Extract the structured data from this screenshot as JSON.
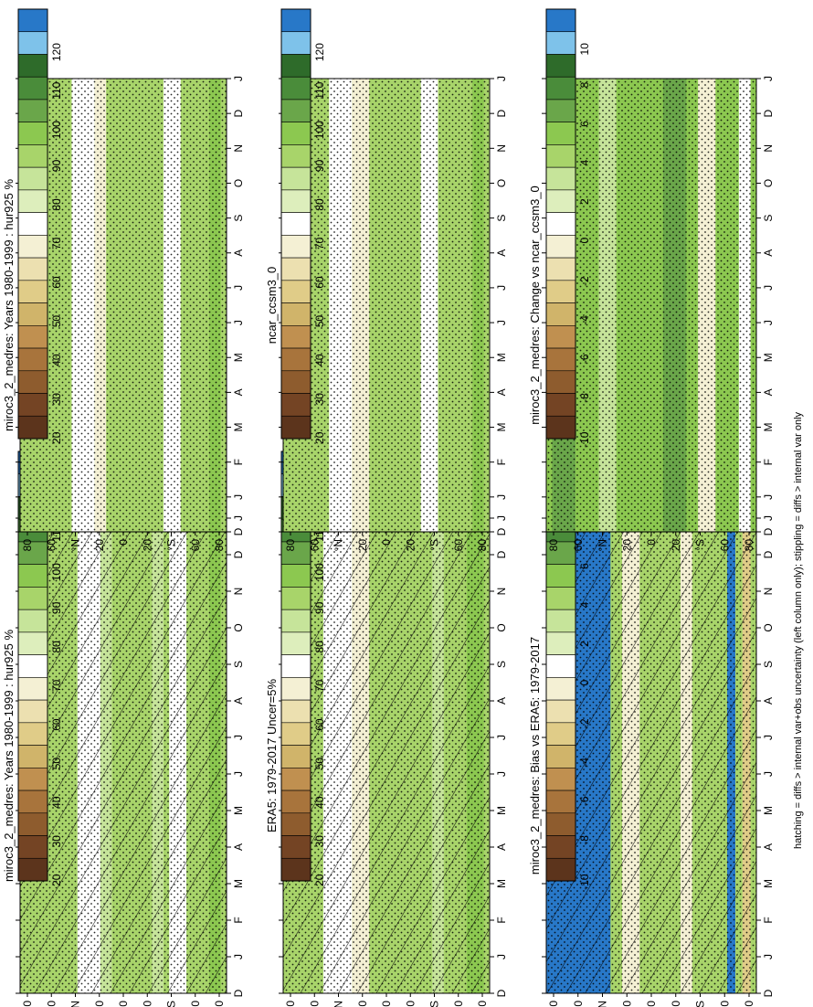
{
  "page": {
    "footnote": "hatching = diffs > internal var+obs uncertainty (left column only); stippling = diffs > internal var only"
  },
  "colors": {
    "land_green_dark": "#3d8a2e",
    "green_mid": "#8cc850",
    "green_light": "#b6dc78",
    "near_white": "#f4f8f0",
    "tan": "#e8d8a0",
    "blue": "#2878c8"
  },
  "scales": {
    "humidity": {
      "labels": [
        "120",
        "110",
        "100",
        "90",
        "80",
        "70",
        "60",
        "50",
        "40",
        "30",
        "20"
      ],
      "colors": [
        "#2878c8",
        "#7ec2ea",
        "#2e6b2a",
        "#4a8c3a",
        "#6aa64a",
        "#8cc850",
        "#a8d46a",
        "#c6e49a",
        "#ddeebc",
        "#ffffff",
        "#f4f0d4",
        "#ece0b0",
        "#e0cc88",
        "#d0b46a",
        "#c09050",
        "#a8743c",
        "#8e5c2e",
        "#744424",
        "#5c341c"
      ]
    },
    "difference": {
      "labels": [
        "10",
        "8",
        "6",
        "4",
        "2",
        "0",
        "-2",
        "-4",
        "-6",
        "-8",
        "-10"
      ],
      "colors": [
        "#2878c8",
        "#7ec2ea",
        "#2e6b2a",
        "#4a8c3a",
        "#6aa64a",
        "#8cc850",
        "#a8d46a",
        "#c6e49a",
        "#ddeebc",
        "#ffffff",
        "#f4f0d4",
        "#ece0b0",
        "#e0cc88",
        "#d0b46a",
        "#c09050",
        "#a8743c",
        "#8e5c2e",
        "#744424",
        "#5c341c"
      ]
    }
  },
  "axes": {
    "months": [
      "D",
      "J",
      "F",
      "M",
      "A",
      "M",
      "J",
      "J",
      "A",
      "S",
      "O",
      "N",
      "D",
      "J"
    ],
    "lat_labels": [
      "80",
      "60",
      "°N",
      "20",
      "0",
      "20",
      "°S",
      "60",
      "80"
    ]
  },
  "chart_data": [
    {
      "type": "heatmap",
      "title": "miroc3_2_medres: Years 1980-1999 : hur925 %",
      "scale": "humidity",
      "hatched": true,
      "stippled": true,
      "base": "#a8d46a",
      "bands": [
        {
          "from": 80,
          "to": 60,
          "color": "#a8d46a"
        },
        {
          "from": 40,
          "to": 20,
          "color": "#ffffff"
        },
        {
          "from": 20,
          "to": 10,
          "color": "#c6e49a"
        },
        {
          "from": -25,
          "to": -35,
          "color": "#c6e49a"
        },
        {
          "from": -40,
          "to": -55,
          "color": "#ffffff"
        },
        {
          "from": -75,
          "to": -85,
          "color": "#8cc850"
        }
      ]
    },
    {
      "type": "heatmap",
      "title": "miroc3_2_medres: Years 1980-1999 : hur925 %",
      "scale": "humidity",
      "hatched": false,
      "stippled": true,
      "base": "#a8d46a",
      "bands": [
        {
          "from": 45,
          "to": 25,
          "color": "#ffffff"
        },
        {
          "from": 25,
          "to": 15,
          "color": "#f4f0d4"
        },
        {
          "from": -35,
          "to": -50,
          "color": "#ffffff"
        },
        {
          "from": -75,
          "to": -85,
          "color": "#8cc850"
        }
      ]
    },
    {
      "type": "heatmap",
      "title": "ERA5: 1979-2017 Uncer=5%",
      "scale": "humidity",
      "hatched": true,
      "stippled": true,
      "base": "#a8d46a",
      "bands": [
        {
          "from": 55,
          "to": 30,
          "color": "#ffffff"
        },
        {
          "from": 30,
          "to": 15,
          "color": "#f4f0d4"
        },
        {
          "from": -40,
          "to": -50,
          "color": "#c6e49a"
        },
        {
          "from": -70,
          "to": -85,
          "color": "#8cc850"
        }
      ]
    },
    {
      "type": "heatmap",
      "title": "ncar_ccsm3_0",
      "scale": "humidity",
      "hatched": false,
      "stippled": true,
      "base": "#a8d46a",
      "bands": [
        {
          "from": 50,
          "to": 30,
          "color": "#ffffff"
        },
        {
          "from": 30,
          "to": 15,
          "color": "#f4f0d4"
        },
        {
          "from": -30,
          "to": -45,
          "color": "#ffffff"
        },
        {
          "from": -75,
          "to": -85,
          "color": "#8cc850"
        }
      ]
    },
    {
      "type": "heatmap",
      "title": "miroc3_2_medres: Bias vs ERA5: 1979-2017",
      "scale": "difference",
      "hatched": true,
      "stippled": true,
      "base": "#a8d46a",
      "bands": [
        {
          "from": 90,
          "to": 35,
          "color": "#2878c8"
        },
        {
          "from": 25,
          "to": 10,
          "color": "#f4f0d4"
        },
        {
          "from": -25,
          "to": -35,
          "color": "#f4f0d4"
        },
        {
          "from": -65,
          "to": -72,
          "color": "#2878c8"
        },
        {
          "from": -78,
          "to": -85,
          "color": "#e0cc88"
        }
      ]
    },
    {
      "type": "heatmap",
      "title": "miroc3_2_medres: Change vs ncar_ccsm3_0",
      "scale": "difference",
      "hatched": false,
      "stippled": true,
      "base": "#8cc850",
      "bands": [
        {
          "from": 85,
          "to": 65,
          "color": "#6aa64a"
        },
        {
          "from": 45,
          "to": 30,
          "color": "#c6e49a"
        },
        {
          "from": -10,
          "to": -30,
          "color": "#6aa64a"
        },
        {
          "from": -40,
          "to": -55,
          "color": "#f4f0d4"
        },
        {
          "from": -75,
          "to": -85,
          "color": "#ffffff"
        }
      ]
    }
  ]
}
